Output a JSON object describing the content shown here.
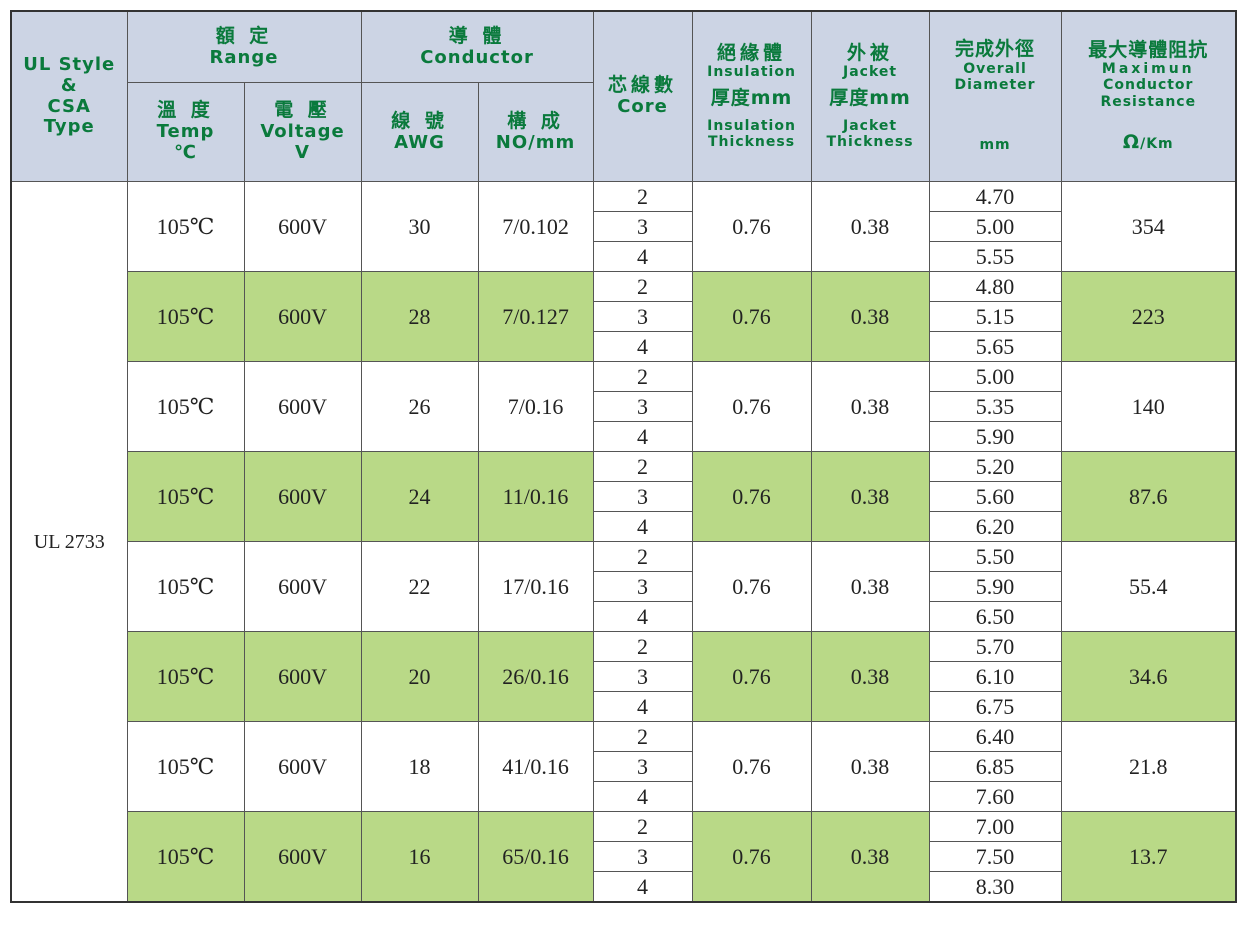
{
  "header": {
    "style_label": [
      "UL Style",
      "&",
      "CSA",
      "Type"
    ],
    "range_zh": "額 定",
    "range_en": "Range",
    "conductor_zh": "導 體",
    "conductor_en": "Conductor",
    "temp_zh": "溫 度",
    "temp_en": "Temp",
    "temp_unit": "℃",
    "voltage_zh": "電 壓",
    "voltage_en": "Voltage",
    "voltage_unit": "V",
    "awg_zh": "線 號",
    "awg_en": "AWG",
    "make_zh": "構 成",
    "make_en": "NO/mm",
    "core_zh": "芯線數",
    "core_en": "Core",
    "ins_zh": "絕緣體",
    "ins_en": "Insulation",
    "ins_thk_zh": "厚度mm",
    "ins_thk_en1": "Insulation",
    "ins_thk_en2": "Thickness",
    "jkt_zh": "外被",
    "jkt_en": "Jacket",
    "jkt_thk_zh": "厚度mm",
    "jkt_thk_en1": "Jacket",
    "jkt_thk_en2": "Thickness",
    "od_zh": "完成外徑",
    "od_en1": "Overall",
    "od_en2": "Diameter",
    "od_unit": "mm",
    "res_zh": "最大導體阻抗",
    "res_en1": "Maximun",
    "res_en2": "Conductor",
    "res_en3": "Resistance",
    "res_unit_symbol": "Ω",
    "res_unit": "/Km"
  },
  "style_value": "UL 2733",
  "groups": [
    {
      "temp": "105℃",
      "voltage": "600V",
      "awg": "30",
      "construction": "7/0.102",
      "cores": [
        "2",
        "3",
        "4"
      ],
      "insulation": "0.76",
      "jacket": "0.38",
      "diameters": [
        "4.70",
        "5.00",
        "5.55"
      ],
      "resistance": "354",
      "shaded": false
    },
    {
      "temp": "105℃",
      "voltage": "600V",
      "awg": "28",
      "construction": "7/0.127",
      "cores": [
        "2",
        "3",
        "4"
      ],
      "insulation": "0.76",
      "jacket": "0.38",
      "diameters": [
        "4.80",
        "5.15",
        "5.65"
      ],
      "resistance": "223",
      "shaded": true
    },
    {
      "temp": "105℃",
      "voltage": "600V",
      "awg": "26",
      "construction": "7/0.16",
      "cores": [
        "2",
        "3",
        "4"
      ],
      "insulation": "0.76",
      "jacket": "0.38",
      "diameters": [
        "5.00",
        "5.35",
        "5.90"
      ],
      "resistance": "140",
      "shaded": false
    },
    {
      "temp": "105℃",
      "voltage": "600V",
      "awg": "24",
      "construction": "11/0.16",
      "cores": [
        "2",
        "3",
        "4"
      ],
      "insulation": "0.76",
      "jacket": "0.38",
      "diameters": [
        "5.20",
        "5.60",
        "6.20"
      ],
      "resistance": "87.6",
      "shaded": true
    },
    {
      "temp": "105℃",
      "voltage": "600V",
      "awg": "22",
      "construction": "17/0.16",
      "cores": [
        "2",
        "3",
        "4"
      ],
      "insulation": "0.76",
      "jacket": "0.38",
      "diameters": [
        "5.50",
        "5.90",
        "6.50"
      ],
      "resistance": "55.4",
      "shaded": false
    },
    {
      "temp": "105℃",
      "voltage": "600V",
      "awg": "20",
      "construction": "26/0.16",
      "cores": [
        "2",
        "3",
        "4"
      ],
      "insulation": "0.76",
      "jacket": "0.38",
      "diameters": [
        "5.70",
        "6.10",
        "6.75"
      ],
      "resistance": "34.6",
      "shaded": true
    },
    {
      "temp": "105℃",
      "voltage": "600V",
      "awg": "18",
      "construction": "41/0.16",
      "cores": [
        "2",
        "3",
        "4"
      ],
      "insulation": "0.76",
      "jacket": "0.38",
      "diameters": [
        "6.40",
        "6.85",
        "7.60"
      ],
      "resistance": "21.8",
      "shaded": false
    },
    {
      "temp": "105℃",
      "voltage": "600V",
      "awg": "16",
      "construction": "65/0.16",
      "cores": [
        "2",
        "3",
        "4"
      ],
      "insulation": "0.76",
      "jacket": "0.38",
      "diameters": [
        "7.00",
        "7.50",
        "8.30"
      ],
      "resistance": "13.7",
      "shaded": true
    }
  ],
  "colors": {
    "header_bg": "#ccd4e4",
    "header_text": "#0a7a3c",
    "shade_green": "#b9d987",
    "border": "#333333"
  }
}
